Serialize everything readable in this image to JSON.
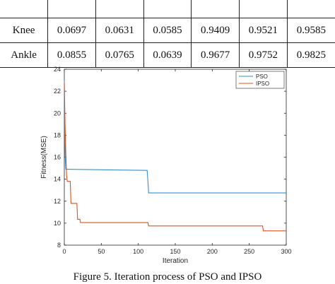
{
  "table": {
    "rows": [
      {
        "label": "Knee",
        "values": [
          "0.0697",
          "0.0631",
          "0.0585",
          "0.9409",
          "0.9521",
          "0.9585"
        ]
      },
      {
        "label": "Ankle",
        "values": [
          "0.0855",
          "0.0765",
          "0.0639",
          "0.9677",
          "0.9752",
          "0.9825"
        ]
      }
    ]
  },
  "chart_data": {
    "type": "line",
    "title": "",
    "xlabel": "Iteration",
    "ylabel": "Fitness(MSE)",
    "xlim": [
      0,
      300
    ],
    "ylim": [
      8,
      24
    ],
    "xticks": [
      0,
      50,
      100,
      150,
      200,
      250,
      300
    ],
    "yticks": [
      8,
      10,
      12,
      14,
      16,
      18,
      20,
      22,
      24
    ],
    "grid": false,
    "legend_position": "top-right",
    "series": [
      {
        "name": "PSO",
        "color": "#3a8fc7",
        "x": [
          0,
          0.5,
          1,
          1.5,
          2,
          2.5,
          3,
          112,
          113,
          114,
          300
        ],
        "y": [
          23.0,
          20.0,
          16.5,
          15.5,
          14.9,
          14.9,
          14.9,
          14.8,
          13.8,
          12.75,
          12.75
        ]
      },
      {
        "name": "IPSO",
        "color": "#d9541f",
        "x": [
          0,
          0.5,
          1,
          2,
          3,
          4,
          8,
          9,
          17,
          18,
          21,
          22,
          32,
          33,
          113,
          114,
          268,
          269,
          300
        ],
        "y": [
          22.8,
          21.0,
          19.0,
          16.5,
          14.4,
          13.8,
          13.8,
          11.8,
          11.8,
          10.35,
          10.35,
          10.05,
          10.05,
          10.05,
          10.05,
          9.75,
          9.75,
          9.3,
          9.3
        ]
      }
    ]
  },
  "caption": "Figure 5. Iteration process of PSO and IPSO"
}
